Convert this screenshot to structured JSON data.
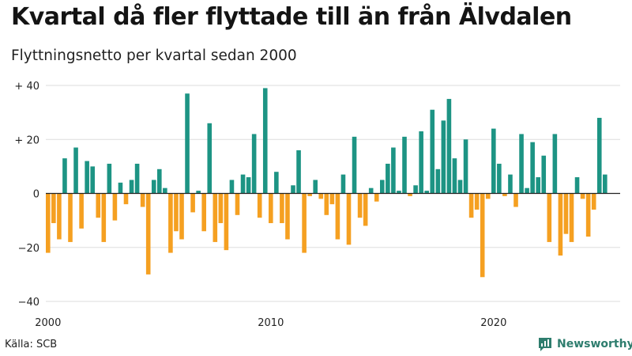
{
  "header": {
    "title": "Kvartal då fler flyttade till än från Älvdalen",
    "subtitle": "Flyttningsnetto per kvartal sedan 2000"
  },
  "footer": {
    "source": "Källa: SCB",
    "brand": "Newsworthy"
  },
  "colors": {
    "positive": "#1d9484",
    "negative": "#f5a021",
    "grid": "#dddddd",
    "zero_line": "#222222",
    "brand": "#2e7d6e"
  },
  "chart_data": {
    "type": "bar",
    "x_start": "2000 Q1",
    "y_ticks": [
      {
        "value": 40,
        "label": "+ 40"
      },
      {
        "value": 20,
        "label": "+ 20"
      },
      {
        "value": 0,
        "label": "0"
      },
      {
        "value": -20,
        "label": "−20"
      },
      {
        "value": -40,
        "label": "−40"
      }
    ],
    "x_ticks": [
      {
        "year": 2000,
        "label": "2000"
      },
      {
        "year": 2010,
        "label": "2010"
      },
      {
        "year": 2020,
        "label": "2020"
      }
    ],
    "ylim": [
      -40,
      40
    ],
    "grid": true,
    "values": [
      -22,
      -11,
      -17,
      13,
      -18,
      17,
      -13,
      12,
      10,
      -9,
      -18,
      11,
      -10,
      4,
      -4,
      5,
      11,
      -5,
      -30,
      5,
      9,
      2,
      -22,
      -14,
      -17,
      37,
      -7,
      1,
      -14,
      26,
      -18,
      -11,
      -21,
      5,
      -8,
      7,
      6,
      22,
      -9,
      39,
      -11,
      8,
      -11,
      -17,
      3,
      16,
      -22,
      -1,
      5,
      -2,
      -8,
      -4,
      -17,
      7,
      -19,
      21,
      -9,
      -12,
      2,
      -3,
      5,
      11,
      17,
      1,
      21,
      -1,
      3,
      23,
      1,
      31,
      9,
      27,
      35,
      13,
      5,
      20,
      -9,
      -6,
      -31,
      -2,
      24,
      11,
      -1,
      7,
      -5,
      22,
      2,
      19,
      6,
      14,
      -18,
      22,
      -23,
      -15,
      -18,
      6,
      -2,
      -16,
      -6,
      28,
      7
    ]
  }
}
